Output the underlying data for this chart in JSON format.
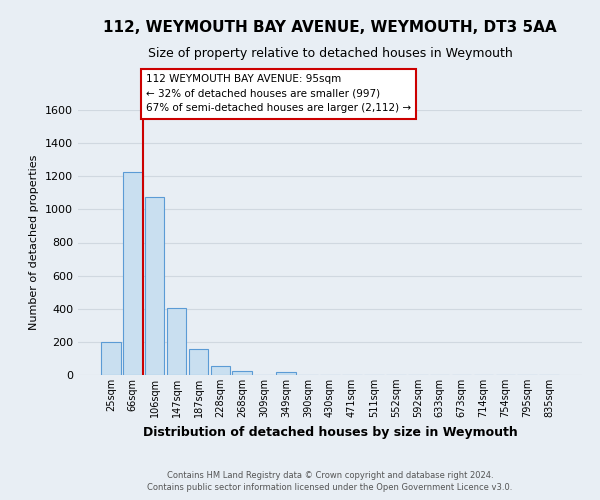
{
  "title": "112, WEYMOUTH BAY AVENUE, WEYMOUTH, DT3 5AA",
  "subtitle": "Size of property relative to detached houses in Weymouth",
  "xlabel": "Distribution of detached houses by size in Weymouth",
  "ylabel": "Number of detached properties",
  "bar_labels": [
    "25sqm",
    "66sqm",
    "106sqm",
    "147sqm",
    "187sqm",
    "228sqm",
    "268sqm",
    "309sqm",
    "349sqm",
    "390sqm",
    "430sqm",
    "471sqm",
    "511sqm",
    "552sqm",
    "592sqm",
    "633sqm",
    "673sqm",
    "714sqm",
    "754sqm",
    "795sqm",
    "835sqm"
  ],
  "bar_values": [
    200,
    1225,
    1075,
    405,
    160,
    55,
    25,
    0,
    20,
    0,
    0,
    0,
    0,
    0,
    0,
    0,
    0,
    0,
    0,
    0,
    0
  ],
  "bar_color": "#c9dff0",
  "bar_edge_color": "#5b9bd5",
  "property_line_color": "#cc0000",
  "ylim": [
    0,
    1600
  ],
  "yticks": [
    0,
    200,
    400,
    600,
    800,
    1000,
    1200,
    1400,
    1600
  ],
  "annotation_line1": "112 WEYMOUTH BAY AVENUE: 95sqm",
  "annotation_line2": "← 32% of detached houses are smaller (997)",
  "annotation_line3": "67% of semi-detached houses are larger (2,112) →",
  "annotation_box_color": "#ffffff",
  "annotation_box_edge": "#cc0000",
  "grid_color": "#d0d8e0",
  "background_color": "#e8eef4",
  "plot_bg_color": "#e8eef4",
  "footer_line1": "Contains HM Land Registry data © Crown copyright and database right 2024.",
  "footer_line2": "Contains public sector information licensed under the Open Government Licence v3.0."
}
